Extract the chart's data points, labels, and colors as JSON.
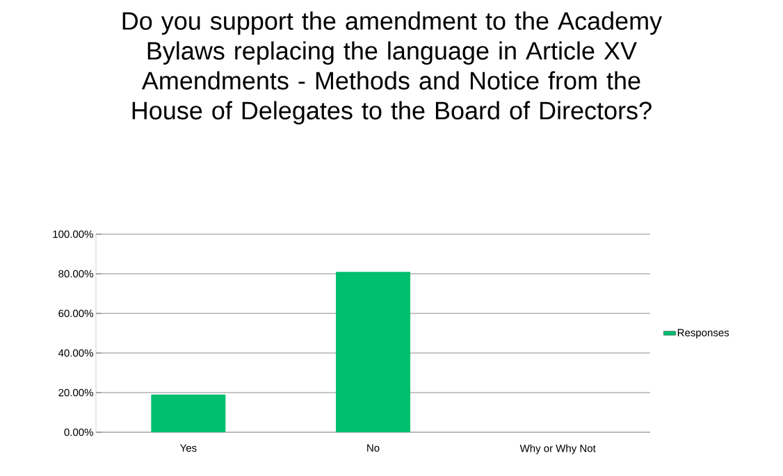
{
  "chart_data": {
    "type": "bar",
    "title": "Do you support the amendment to the Academy Bylaws replacing the language in Article XV Amendments - Methods and Notice from the House of Delegates to the Board of Directors?",
    "categories": [
      "Yes",
      "No",
      "Why or Why Not"
    ],
    "series": [
      {
        "name": "Responses",
        "color": "#00bf6f",
        "values": [
          19,
          81,
          0
        ]
      }
    ],
    "ylim": [
      0,
      100
    ],
    "yticks": [
      {
        "value": 0,
        "label": "0.00%"
      },
      {
        "value": 20,
        "label": "20.00%"
      },
      {
        "value": 40,
        "label": "40.00%"
      },
      {
        "value": 60,
        "label": "60.00%"
      },
      {
        "value": 80,
        "label": "80.00%"
      },
      {
        "value": 100,
        "label": "100.00%"
      }
    ],
    "grid": "y",
    "legend": "right"
  }
}
